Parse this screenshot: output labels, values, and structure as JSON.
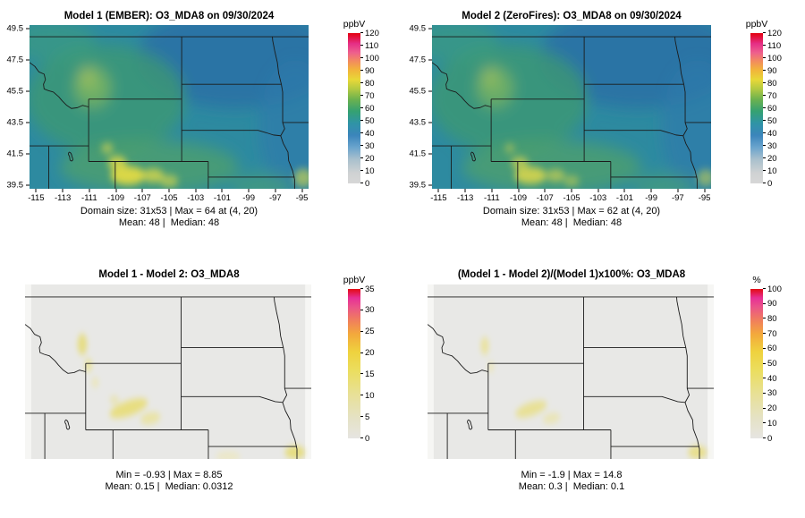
{
  "colorbars": {
    "o3": {
      "label": "ppbV",
      "min": 0,
      "max": 120,
      "ticks": [
        0,
        10,
        20,
        30,
        40,
        50,
        60,
        70,
        80,
        90,
        100,
        110,
        120
      ],
      "stops": [
        [
          0,
          "#d7d7d7"
        ],
        [
          0.07,
          "#cfd2d3"
        ],
        [
          0.16,
          "#a9c0cd"
        ],
        [
          0.24,
          "#6aa4cd"
        ],
        [
          0.32,
          "#3b85bb"
        ],
        [
          0.4,
          "#2f94a6"
        ],
        [
          0.48,
          "#35a172"
        ],
        [
          0.56,
          "#6db24e"
        ],
        [
          0.63,
          "#b5ca41"
        ],
        [
          0.69,
          "#e8d838"
        ],
        [
          0.76,
          "#f2b13c"
        ],
        [
          0.82,
          "#f28763"
        ],
        [
          0.87,
          "#ee5f8d"
        ],
        [
          0.93,
          "#e52e86"
        ],
        [
          1,
          "#e3000f"
        ]
      ]
    },
    "diff": {
      "label": "ppbV",
      "min": 0,
      "max": 35,
      "ticks": [
        0,
        5,
        10,
        15,
        20,
        25,
        30,
        35
      ],
      "stops": [
        [
          0,
          "#e6e5e2"
        ],
        [
          0.14,
          "#e5e2c4"
        ],
        [
          0.3,
          "#e8e095"
        ],
        [
          0.45,
          "#ebde60"
        ],
        [
          0.58,
          "#efd23e"
        ],
        [
          0.7,
          "#f3a83c"
        ],
        [
          0.8,
          "#f07a60"
        ],
        [
          0.88,
          "#ea5389"
        ],
        [
          0.94,
          "#e72f95"
        ],
        [
          1,
          "#e30b12"
        ]
      ]
    },
    "pct": {
      "label": "%",
      "min": 0,
      "max": 100,
      "ticks": [
        0,
        10,
        20,
        30,
        40,
        50,
        60,
        70,
        80,
        90,
        100
      ],
      "stops": [
        [
          0,
          "#e6e5e2"
        ],
        [
          0.14,
          "#e5e2c4"
        ],
        [
          0.3,
          "#e8e095"
        ],
        [
          0.45,
          "#ebde60"
        ],
        [
          0.58,
          "#efd23e"
        ],
        [
          0.7,
          "#f3a83c"
        ],
        [
          0.8,
          "#f07a60"
        ],
        [
          0.88,
          "#ea5389"
        ],
        [
          0.94,
          "#e72f95"
        ],
        [
          1,
          "#e30b12"
        ]
      ]
    }
  },
  "axes_top": {
    "xticks": [
      -115,
      -113,
      -111,
      -109,
      -107,
      -105,
      -103,
      -101,
      -99,
      -97,
      -95
    ],
    "yticks": [
      39.5,
      41.5,
      43.5,
      45.5,
      47.5,
      49.5
    ],
    "lon_range": [
      -115.5,
      -94.5
    ],
    "lat_range": [
      39.25,
      49.75
    ]
  },
  "panels": [
    {
      "title": "Model 1 (EMBER): O3_MDA8 on 09/30/2024",
      "caption_line1": "Domain size: 31x53 | Max = 64 at (4, 20)",
      "caption_line2": "Mean: 48 |  Median: 48",
      "colorbar": "o3",
      "axes": "axes_top"
    },
    {
      "title": "Model 2 (ZeroFires): O3_MDA8 on 09/30/2024",
      "caption_line1": "Domain size: 31x53 | Max = 62 at (4, 20)",
      "caption_line2": "Mean: 48 |  Median: 48",
      "colorbar": "o3",
      "axes": "axes_top"
    },
    {
      "title": "Model 1 - Model 2: O3_MDA8",
      "caption_line1": "Min = -0.93 | Max = 8.85",
      "caption_line2": "Mean: 0.15 |  Median: 0.0312",
      "colorbar": "diff"
    },
    {
      "title": "(Model 1 - Model 2)/(Model 1)x100%: O3_MDA8",
      "caption_line1": "Min = -1.9 | Max = 14.8",
      "caption_line2": "Mean: 0.3 |  Median: 0.1",
      "colorbar": "pct"
    }
  ],
  "chart_data": [
    {
      "type": "heatmap",
      "panel": "top-left",
      "title": "Model 1 (EMBER): O3_MDA8 on 09/30/2024",
      "units": "ppbV",
      "domain_size": "31x53",
      "max": 64,
      "max_location": "(4, 20)",
      "mean": 48,
      "median": 48,
      "colorbar_range": [
        0,
        120
      ],
      "colorbar_ticks": [
        0,
        10,
        20,
        30,
        40,
        50,
        60,
        70,
        80,
        90,
        100,
        110,
        120
      ],
      "x_axis_lon_ticks": [
        -115,
        -113,
        -111,
        -109,
        -107,
        -105,
        -103,
        -101,
        -99,
        -97,
        -95
      ],
      "y_axis_lat_ticks": [
        39.5,
        41.5,
        43.5,
        45.5,
        47.5,
        49.5
      ],
      "map_region": "US Northern Rockies / Great Plains with state borders"
    },
    {
      "type": "heatmap",
      "panel": "top-right",
      "title": "Model 2 (ZeroFires): O3_MDA8 on 09/30/2024",
      "units": "ppbV",
      "domain_size": "31x53",
      "max": 62,
      "max_location": "(4, 20)",
      "mean": 48,
      "median": 48,
      "colorbar_range": [
        0,
        120
      ],
      "colorbar_ticks": [
        0,
        10,
        20,
        30,
        40,
        50,
        60,
        70,
        80,
        90,
        100,
        110,
        120
      ],
      "x_axis_lon_ticks": [
        -115,
        -113,
        -111,
        -109,
        -107,
        -105,
        -103,
        -101,
        -99,
        -97,
        -95
      ],
      "y_axis_lat_ticks": [
        39.5,
        41.5,
        43.5,
        45.5,
        47.5,
        49.5
      ]
    },
    {
      "type": "heatmap",
      "panel": "bottom-left",
      "title": "Model 1 - Model 2: O3_MDA8",
      "units": "ppbV",
      "min": -0.93,
      "max": 8.85,
      "mean": 0.15,
      "median": 0.0312,
      "colorbar_range": [
        0,
        35
      ],
      "colorbar_ticks": [
        0,
        5,
        10,
        15,
        20,
        25,
        30,
        35
      ]
    },
    {
      "type": "heatmap",
      "panel": "bottom-right",
      "title": "(Model 1 - Model 2)/(Model 1)x100%: O3_MDA8",
      "units": "%",
      "min": -1.9,
      "max": 14.8,
      "mean": 0.3,
      "median": 0.1,
      "colorbar_range": [
        0,
        100
      ],
      "colorbar_ticks": [
        0,
        10,
        20,
        30,
        40,
        50,
        60,
        70,
        80,
        90,
        100
      ]
    }
  ]
}
